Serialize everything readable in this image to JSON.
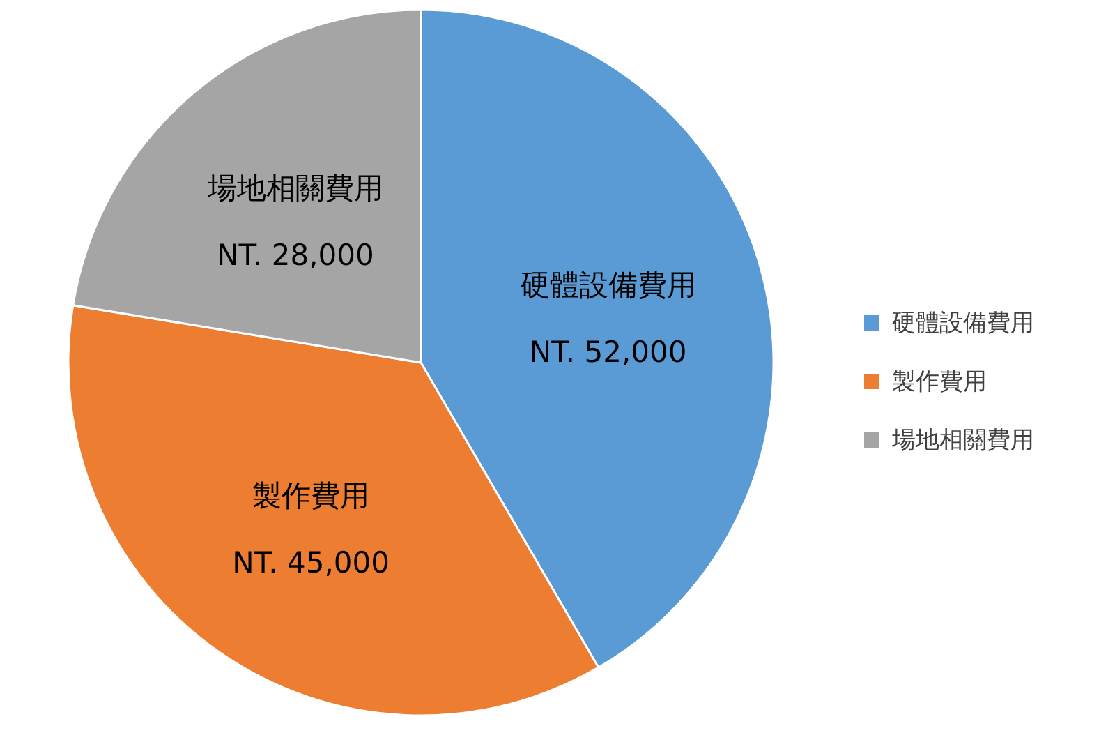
{
  "chart_data": {
    "type": "pie",
    "categories": [
      "硬體設備費用",
      "製作費用",
      "場地相關費用"
    ],
    "values": [
      52000,
      45000,
      28000
    ],
    "value_labels": [
      "NT. 52,000",
      "NT. 45,000",
      "NT. 28,000"
    ],
    "colors": [
      "#5b9bd5",
      "#ed7d31",
      "#a5a5a5"
    ],
    "legend": "right"
  }
}
